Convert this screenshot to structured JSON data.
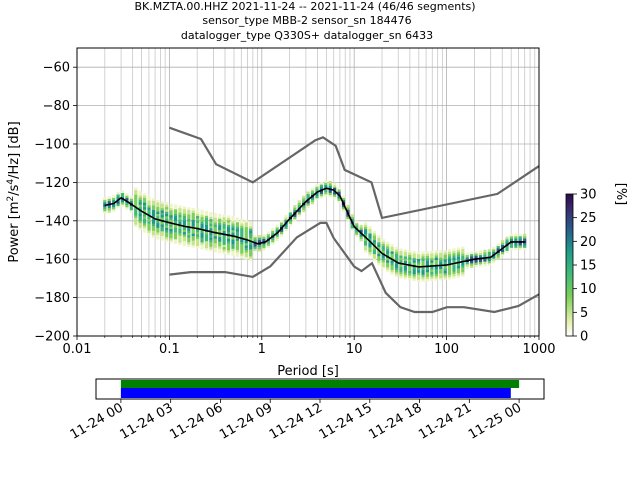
{
  "title_lines": [
    "BK.MZTA.00.HHZ   2021-11-24 -- 2021-11-24  (46/46 segments)",
    "sensor_type MBB-2 sensor_sn 184476",
    "datalogger_type Q330S+ datalogger_sn 6433"
  ],
  "chart_data": [
    {
      "type": "heatmap",
      "title": "BK.MZTA.00.HHZ   2021-11-24 -- 2021-11-24  (46/46 segments)",
      "xlabel": "Period [s]",
      "ylabel": "Power [m²/s⁴/Hz] [dB]",
      "xscale": "log",
      "xlim": [
        0.01,
        1000
      ],
      "ylim": [
        -200,
        -50
      ],
      "grid": true,
      "x_tick_labels": [
        "0.01",
        "0.1",
        "1",
        "10",
        "100",
        "1000"
      ],
      "x_tick_values": [
        0.01,
        0.1,
        1,
        10,
        100,
        1000
      ],
      "y_ticks": [
        -60,
        -80,
        -100,
        -120,
        -140,
        -160,
        -180,
        -200
      ],
      "colorbar": {
        "label": "[%]",
        "min": 0,
        "max": 30,
        "ticks": [
          0,
          5,
          10,
          15,
          20,
          25,
          30
        ]
      },
      "series": [
        {
          "role": "mean",
          "color": "#000000",
          "x": [
            0.02,
            0.025,
            0.03,
            0.035,
            0.05,
            0.07,
            0.1,
            0.15,
            0.2,
            0.3,
            0.5,
            0.7,
            0.9,
            1.1,
            1.5,
            2,
            3,
            4,
            5,
            6,
            7,
            8,
            10,
            15,
            20,
            30,
            50,
            100,
            200,
            300,
            500,
            700
          ],
          "y": [
            -132,
            -131,
            -128,
            -130,
            -135,
            -139,
            -141,
            -143,
            -144,
            -146,
            -148,
            -150,
            -152,
            -151,
            -146,
            -139,
            -130,
            -125,
            -123,
            -124,
            -127,
            -133,
            -143,
            -151,
            -157,
            -162,
            -164,
            -163,
            -160,
            -159,
            -151,
            -151
          ]
        },
        {
          "role": "nhnm",
          "color": "#666666",
          "x": [
            0.1,
            0.22,
            0.32,
            0.8,
            3.8,
            4.6,
            6.3,
            7.9,
            15.4,
            20,
            354.8,
            1000
          ],
          "y": [
            -91.5,
            -97.4,
            -110.5,
            -120,
            -98,
            -96.5,
            -101,
            -113.5,
            -120,
            -138.5,
            -126,
            -111.5
          ]
        },
        {
          "role": "nlnm",
          "color": "#666666",
          "x": [
            0.1,
            0.17,
            0.4,
            0.8,
            1.24,
            2.4,
            4.3,
            5,
            6,
            10,
            12,
            15.6,
            21.9,
            31.6,
            45,
            70,
            101,
            154,
            328,
            600,
            1000
          ],
          "y": [
            -168,
            -166.7,
            -166.7,
            -169.2,
            -163.7,
            -148.6,
            -141.1,
            -141.1,
            -149,
            -163.8,
            -166.2,
            -162.1,
            -177.5,
            -185,
            -187.5,
            -187.5,
            -185,
            -185,
            -187.5,
            -184.4,
            -178.3
          ]
        }
      ]
    },
    {
      "type": "bar",
      "title": "",
      "x_tick_labels": [
        "11-24 00",
        "11-24 03",
        "11-24 06",
        "11-24 09",
        "11-24 12",
        "11-24 15",
        "11-24 18",
        "11-24 21",
        "11-25 00"
      ],
      "xlim_hours": [
        -1.5,
        25.5
      ],
      "series": [
        {
          "role": "data coverage",
          "color": "#008000",
          "start_hour": 0,
          "end_hour": 24
        },
        {
          "role": "psd coverage",
          "color": "#0000ff",
          "start_hour": 0,
          "end_hour": 23.5
        }
      ]
    }
  ]
}
